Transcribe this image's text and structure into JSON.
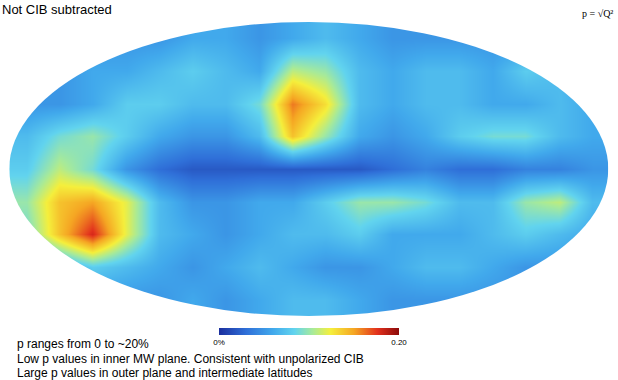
{
  "chart_data": {
    "type": "heatmap",
    "title": "Not CIB subtracted",
    "formula": "p = √Q²",
    "notes": [
      "p ranges from 0 to ~20%",
      "Low p values in inner MW plane. Consistent with unpolarized CIB",
      "Large p values in outer plane and intermediate latitudes"
    ],
    "x": [
      -170,
      -150,
      -130,
      -110,
      -90,
      -70,
      -50,
      -30,
      -10,
      10,
      30,
      50,
      70,
      90,
      110,
      130,
      150,
      170
    ],
    "y": [
      -80,
      -60,
      -40,
      -20,
      0,
      20,
      40,
      60,
      80
    ],
    "xlim": [
      -180,
      180
    ],
    "ylim": [
      -90,
      90
    ],
    "tick_labels": false,
    "cells": [
      [
        0.05,
        0.05,
        0.05,
        0.05,
        0.05,
        0.06,
        0.05,
        0.06,
        0.07,
        0.07,
        0.06,
        0.05,
        0.05,
        0.05,
        0.05,
        0.05,
        0.05,
        0.05
      ],
      [
        0.05,
        0.06,
        0.08,
        0.07,
        0.06,
        0.05,
        0.06,
        0.07,
        0.06,
        0.05,
        0.05,
        0.06,
        0.07,
        0.07,
        0.06,
        0.05,
        0.05,
        0.05
      ],
      [
        0.09,
        0.14,
        0.18,
        0.12,
        0.07,
        0.06,
        0.05,
        0.06,
        0.07,
        0.07,
        0.08,
        0.06,
        0.06,
        0.06,
        0.07,
        0.08,
        0.07,
        0.06
      ],
      [
        0.1,
        0.14,
        0.15,
        0.12,
        0.07,
        0.05,
        0.05,
        0.06,
        0.06,
        0.08,
        0.1,
        0.1,
        0.09,
        0.07,
        0.07,
        0.1,
        0.11,
        0.07
      ],
      [
        0.08,
        0.11,
        0.09,
        0.05,
        0.03,
        0.02,
        0.02,
        0.02,
        0.02,
        0.02,
        0.02,
        0.03,
        0.04,
        0.03,
        0.03,
        0.04,
        0.04,
        0.05
      ],
      [
        0.07,
        0.09,
        0.1,
        0.08,
        0.06,
        0.05,
        0.05,
        0.07,
        0.14,
        0.1,
        0.06,
        0.05,
        0.06,
        0.08,
        0.09,
        0.09,
        0.07,
        0.06
      ],
      [
        0.05,
        0.05,
        0.06,
        0.08,
        0.08,
        0.07,
        0.07,
        0.09,
        0.16,
        0.13,
        0.07,
        0.06,
        0.07,
        0.07,
        0.06,
        0.06,
        0.07,
        0.06
      ],
      [
        0.05,
        0.05,
        0.06,
        0.06,
        0.07,
        0.08,
        0.07,
        0.06,
        0.11,
        0.1,
        0.07,
        0.06,
        0.07,
        0.07,
        0.06,
        0.08,
        0.07,
        0.05
      ],
      [
        0.05,
        0.05,
        0.05,
        0.05,
        0.05,
        0.06,
        0.06,
        0.05,
        0.06,
        0.07,
        0.06,
        0.05,
        0.05,
        0.05,
        0.05,
        0.05,
        0.05,
        0.05
      ]
    ],
    "color_range": [
      0,
      0.2
    ],
    "color_ticks": [
      {
        "value": 0,
        "label": "0%"
      },
      {
        "value": 0.2,
        "label": "0.20"
      }
    ]
  }
}
